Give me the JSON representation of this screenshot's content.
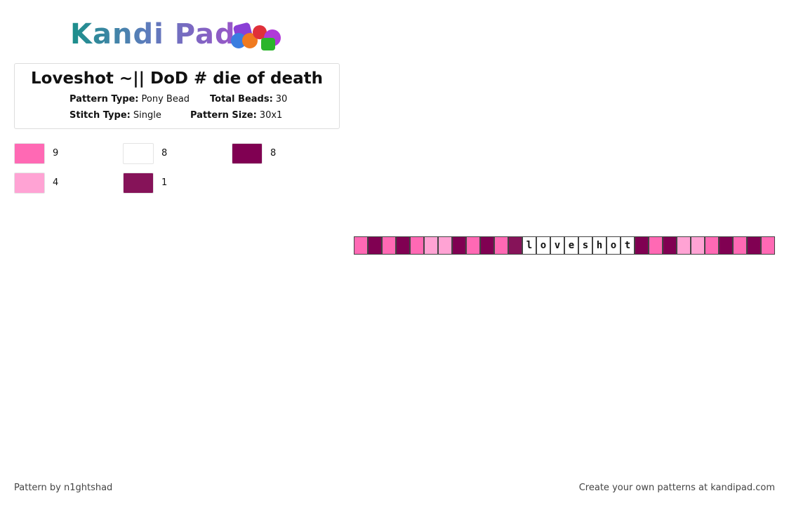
{
  "header": {
    "logo": "Kandi Pad",
    "title": "Loveshot ~|| DoD # die of death"
  },
  "info": [
    [
      {
        "label": "Pattern Type:",
        "value": "Pony Bead"
      },
      {
        "label": "Total Beads:",
        "value": "30"
      }
    ],
    [
      {
        "label": "Stitch Type:",
        "value": "Single"
      },
      {
        "label": "Pattern Size:",
        "value": "30x1"
      }
    ]
  ],
  "palette": [
    {
      "color": "#ff69b4",
      "count": "9"
    },
    {
      "color": "#ffffff",
      "count": "8"
    },
    {
      "color": "#800052",
      "count": "8"
    },
    {
      "color": "#ffa3d4",
      "count": "4"
    },
    {
      "color": "#861359",
      "count": "1"
    }
  ],
  "beads": [
    {
      "color": "#ff69b4"
    },
    {
      "color": "#800052"
    },
    {
      "color": "#ff69b4"
    },
    {
      "color": "#800052"
    },
    {
      "color": "#ff69b4"
    },
    {
      "color": "#ffa3d4"
    },
    {
      "color": "#ffa3d4"
    },
    {
      "color": "#800052"
    },
    {
      "color": "#ff69b4"
    },
    {
      "color": "#800052"
    },
    {
      "color": "#ff69b4"
    },
    {
      "color": "#861359"
    },
    {
      "color": "#ffffff",
      "letter": "l"
    },
    {
      "color": "#ffffff",
      "letter": "o"
    },
    {
      "color": "#ffffff",
      "letter": "v"
    },
    {
      "color": "#ffffff",
      "letter": "e"
    },
    {
      "color": "#ffffff",
      "letter": "s"
    },
    {
      "color": "#ffffff",
      "letter": "h"
    },
    {
      "color": "#ffffff",
      "letter": "o"
    },
    {
      "color": "#ffffff",
      "letter": "t"
    },
    {
      "color": "#800052"
    },
    {
      "color": "#ff69b4"
    },
    {
      "color": "#800052"
    },
    {
      "color": "#ffa3d4"
    },
    {
      "color": "#ffa3d4"
    },
    {
      "color": "#ff69b4"
    },
    {
      "color": "#800052"
    },
    {
      "color": "#ff69b4"
    },
    {
      "color": "#800052"
    },
    {
      "color": "#ff69b4"
    }
  ],
  "footer": {
    "left": "Pattern by n1ghtshad",
    "right": "Create your own patterns at kandipad.com"
  }
}
